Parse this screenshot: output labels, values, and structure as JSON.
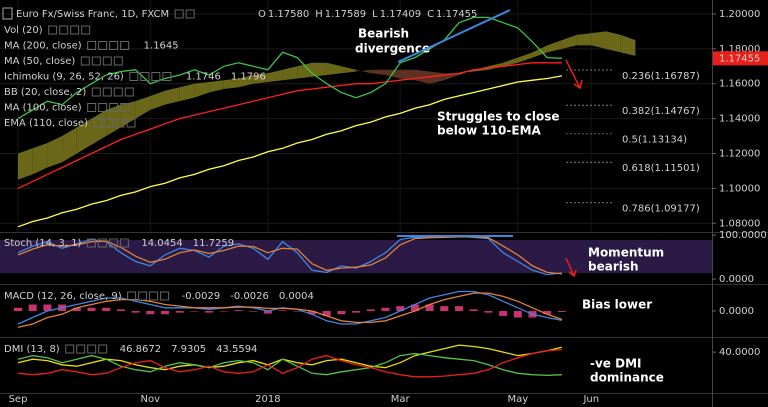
{
  "chart_data": [
    {
      "type": "line",
      "title": "Euro Fx/Swiss Franc, 1D, FXCM",
      "ohlc": [
        {
          "key": "O",
          "value": "1.17580"
        },
        {
          "key": "H",
          "value": "1.17589"
        },
        {
          "key": "L",
          "value": "1.17409"
        },
        {
          "key": "C",
          "value": "1.17455"
        }
      ],
      "indicators": [
        {
          "label": "Vol (20)"
        },
        {
          "label": "MA (200, close)",
          "values": [
            {
              "text": "1.1645",
              "color": "#ffff44"
            }
          ]
        },
        {
          "label": "MA (50, close)"
        },
        {
          "label": "Ichimoku (9, 26, 52, 26)",
          "values": [
            {
              "text": "1.1746",
              "color": "#55c24a"
            },
            {
              "text": "1.1796",
              "color": "#55c24a"
            }
          ]
        },
        {
          "label": "BB (20, close, 2)"
        },
        {
          "label": "MA (100, close)"
        },
        {
          "label": "EMA (110, close)"
        }
      ],
      "annotations": [
        "Bearish",
        "divergence",
        "Struggles to close",
        "below 110-EMA"
      ],
      "categories": [
        "Sep",
        null,
        null,
        null,
        null,
        null,
        null,
        null,
        null,
        "Nov",
        null,
        null,
        null,
        null,
        null,
        null,
        null,
        "2018",
        null,
        null,
        null,
        null,
        null,
        null,
        null,
        null,
        "Mar",
        null,
        null,
        null,
        null,
        null,
        null,
        null,
        "May",
        null,
        null,
        null,
        null,
        "Jun",
        null,
        null,
        null,
        null,
        null,
        null
      ],
      "ylim": [
        1.075,
        1.208
      ],
      "yticks": [
        {
          "value": 1.2,
          "label": "1.20000"
        },
        {
          "value": 1.18,
          "label": "1.18000"
        },
        {
          "value": 1.16,
          "label": "1.16000"
        },
        {
          "value": 1.14,
          "label": "1.14000"
        },
        {
          "value": 1.12,
          "label": "1.12000"
        },
        {
          "value": 1.1,
          "label": "1.10000"
        },
        {
          "value": 1.08,
          "label": "1.08000"
        }
      ],
      "grid": true,
      "series": [
        {
          "type": "cloud",
          "color": "#7d7a1c",
          "color2": "#6b3b2a",
          "span_a": [
            1.12,
            1.123,
            1.126,
            1.13,
            1.135,
            1.14,
            1.145,
            1.148,
            1.15,
            1.153,
            1.156,
            1.158,
            1.16,
            1.161,
            1.162,
            1.163,
            1.165,
            1.166,
            1.168,
            1.17,
            1.172,
            1.172,
            1.17,
            1.168,
            1.166,
            1.165,
            1.163,
            1.162,
            1.16,
            1.162,
            1.165,
            1.168,
            1.17,
            1.172,
            1.175,
            1.178,
            1.182,
            1.185,
            1.188,
            1.189,
            1.19,
            1.188,
            1.185,
            null,
            null,
            null
          ],
          "span_b": [
            1.105,
            1.108,
            1.112,
            1.115,
            1.12,
            1.125,
            1.13,
            1.135,
            1.14,
            1.145,
            1.148,
            1.15,
            1.152,
            1.155,
            1.157,
            1.158,
            1.16,
            1.161,
            1.162,
            1.163,
            1.164,
            1.165,
            1.166,
            1.167,
            1.168,
            1.168,
            1.168,
            1.168,
            1.167,
            1.166,
            1.166,
            1.167,
            1.168,
            1.17,
            1.172,
            1.175,
            1.178,
            1.18,
            1.182,
            1.182,
            1.18,
            1.178,
            1.176,
            null,
            null,
            null
          ]
        },
        {
          "color": "#ffff44",
          "values": [
            1.078,
            1.081,
            1.083,
            1.086,
            1.088,
            1.091,
            1.093,
            1.096,
            1.098,
            1.101,
            1.103,
            1.106,
            1.108,
            1.111,
            1.113,
            1.116,
            1.118,
            1.121,
            1.123,
            1.126,
            1.128,
            1.131,
            1.133,
            1.136,
            1.138,
            1.141,
            1.143,
            1.146,
            1.148,
            1.151,
            1.153,
            1.155,
            1.157,
            1.159,
            1.161,
            1.162,
            1.163,
            1.1645,
            null,
            null,
            null,
            null,
            null,
            null,
            null,
            null
          ]
        },
        {
          "color": "#ff2020",
          "values": [
            1.1,
            1.104,
            1.108,
            1.112,
            1.116,
            1.12,
            1.124,
            1.128,
            1.131,
            1.134,
            1.137,
            1.14,
            1.142,
            1.144,
            1.146,
            1.148,
            1.15,
            1.152,
            1.154,
            1.156,
            1.157,
            1.158,
            1.159,
            1.16,
            1.16,
            1.161,
            1.162,
            1.163,
            1.164,
            1.165,
            1.166,
            1.168,
            1.169,
            1.17,
            1.171,
            1.172,
            1.172,
            1.172,
            null,
            null,
            null,
            null,
            null,
            null,
            null,
            null
          ]
        },
        {
          "color": "#3cc24b",
          "values": [
            1.14,
            1.145,
            1.15,
            1.148,
            1.155,
            1.16,
            1.165,
            1.167,
            1.168,
            1.16,
            1.163,
            1.165,
            1.168,
            1.165,
            1.17,
            1.172,
            1.17,
            1.168,
            1.178,
            1.175,
            1.166,
            1.16,
            1.155,
            1.152,
            1.155,
            1.16,
            1.172,
            1.175,
            1.18,
            1.185,
            1.195,
            1.198,
            1.198,
            1.195,
            1.192,
            1.184,
            1.175,
            1.17455,
            null,
            null,
            null,
            null,
            null,
            null,
            null,
            null
          ]
        }
      ],
      "fib_levels": [
        {
          "value": 1.16787,
          "label": "0.236(1.16787)",
          "color": "#d0d0d0"
        },
        {
          "value": 1.14767,
          "label": "0.382(1.14767)",
          "color": "#d0d0d0"
        },
        {
          "value": 1.13134,
          "label": "0.5(1.13134)",
          "color": "#6fbf4a"
        },
        {
          "value": 1.11501,
          "label": "0.618(1.11501)",
          "color": "#d0d0d0"
        },
        {
          "value": 1.09177,
          "label": "0.786(1.09177)",
          "color": "#d0d0d0"
        }
      ],
      "last_price": {
        "value": 1.17455,
        "label": "1.17455",
        "color": "#e8201c"
      }
    },
    {
      "type": "line",
      "title": "Stoch (14, 3, 1)",
      "header_values": [
        {
          "text": "14.0454",
          "color": "#3f86e0"
        },
        {
          "text": "11.7259",
          "color": "#e0813a"
        }
      ],
      "annotations": [
        "Momentum",
        "bearish"
      ],
      "ylim": [
        -9,
        107
      ],
      "yticks": [
        {
          "value": 100,
          "label": "100.0000"
        },
        {
          "value": 0,
          "label": "0.0000"
        }
      ],
      "series": [
        {
          "color": "#3f86e0",
          "values": [
            60,
            75,
            85,
            70,
            80,
            90,
            85,
            60,
            40,
            30,
            55,
            70,
            65,
            50,
            75,
            80,
            70,
            45,
            85,
            60,
            20,
            15,
            30,
            25,
            40,
            60,
            90,
            95,
            95,
            96,
            97,
            95,
            92,
            60,
            40,
            20,
            10,
            14.05
          ]
        },
        {
          "color": "#e0813a",
          "values": [
            55,
            68,
            78,
            75,
            78,
            85,
            86,
            72,
            52,
            38,
            45,
            60,
            66,
            58,
            65,
            75,
            74,
            60,
            70,
            68,
            35,
            20,
            25,
            27,
            32,
            48,
            78,
            92,
            94,
            95,
            96,
            96,
            94,
            75,
            55,
            30,
            15,
            11.73
          ]
        }
      ]
    },
    {
      "type": "line",
      "title": "MACD (12, 26, close, 9)",
      "header_values": [
        {
          "text": "-0.0029",
          "color": "#e8201c"
        },
        {
          "text": "-0.0026",
          "color": "#3f86e0"
        },
        {
          "text": "0.0004",
          "color": "#e0813a"
        }
      ],
      "annotations": [
        "Bias lower"
      ],
      "ylim": [
        -0.008,
        0.008
      ],
      "yticks": [
        {
          "value": 0,
          "label": "0.0000"
        }
      ],
      "series": [
        {
          "type": "bar",
          "color": "#c8326e",
          "values": [
            0.001,
            0.002,
            0.002,
            0.002,
            0.001,
            0.001,
            0.001,
            0.0005,
            -0.0005,
            -0.001,
            -0.001,
            -0.0005,
            0,
            -0.0005,
            0,
            0.0003,
            -0.0002,
            -0.0008,
            0.0002,
            -0.0001,
            -0.001,
            -0.0015,
            -0.001,
            -0.0005,
            0.0005,
            0.001,
            0.0015,
            0.002,
            0.002,
            0.0015,
            0.0015,
            0.0005,
            -0.0005,
            -0.0015,
            -0.002,
            -0.002,
            -0.001,
            -0.0003
          ]
        },
        {
          "color": "#3f86e0",
          "values": [
            -0.004,
            -0.002,
            0.0,
            0.001,
            0.002,
            0.003,
            0.004,
            0.004,
            0.003,
            0.002,
            0.001,
            0.001,
            0.001,
            0.0005,
            0.001,
            0.0015,
            0.001,
            0.0,
            0.001,
            0.0005,
            -0.001,
            -0.003,
            -0.004,
            -0.004,
            -0.003,
            -0.002,
            0.0,
            0.002,
            0.004,
            0.005,
            0.006,
            0.006,
            0.005,
            0.003,
            0.001,
            -0.001,
            -0.002,
            -0.0029
          ]
        },
        {
          "color": "#e0813a",
          "values": [
            -0.005,
            -0.004,
            -0.002,
            -0.001,
            0.001,
            0.002,
            0.003,
            0.0035,
            0.0035,
            0.003,
            0.002,
            0.0015,
            0.001,
            0.001,
            0.001,
            0.0012,
            0.0012,
            0.0008,
            0.0008,
            0.0006,
            0.0,
            -0.0015,
            -0.003,
            -0.0035,
            -0.0035,
            -0.003,
            -0.0015,
            0.0,
            0.002,
            0.0035,
            0.0045,
            0.0055,
            0.0055,
            0.0045,
            0.003,
            0.001,
            -0.001,
            -0.0026
          ]
        }
      ]
    },
    {
      "type": "line",
      "title": "DMI (13, 8)",
      "header_values": [
        {
          "text": "46.8672",
          "color": "#e8e000"
        },
        {
          "text": "7.9305",
          "color": "#55c24a"
        },
        {
          "text": "43.5594",
          "color": "#e8201c"
        }
      ],
      "annotations": [
        "-ve DMI",
        "dominance"
      ],
      "ylim": [
        -18,
        60
      ],
      "yticks": [
        {
          "value": 40,
          "label": "40.0000"
        }
      ],
      "series": [
        {
          "color": "#e8e000",
          "values": [
            25,
            30,
            28,
            22,
            20,
            25,
            30,
            28,
            22,
            18,
            15,
            20,
            22,
            18,
            20,
            25,
            28,
            22,
            30,
            25,
            22,
            28,
            30,
            25,
            20,
            18,
            25,
            35,
            40,
            45,
            50,
            48,
            45,
            40,
            35,
            38,
            42,
            46.8672
          ]
        },
        {
          "color": "#55c24a",
          "values": [
            30,
            35,
            32,
            25,
            30,
            35,
            30,
            20,
            15,
            12,
            20,
            25,
            22,
            18,
            25,
            28,
            25,
            15,
            30,
            20,
            10,
            8,
            12,
            15,
            18,
            25,
            35,
            38,
            35,
            32,
            30,
            28,
            22,
            15,
            10,
            8,
            7,
            7.9305
          ]
        },
        {
          "color": "#e8201c",
          "values": [
            10,
            8,
            10,
            15,
            12,
            8,
            10,
            18,
            25,
            28,
            18,
            12,
            15,
            20,
            12,
            10,
            12,
            22,
            10,
            18,
            30,
            35,
            28,
            22,
            18,
            12,
            8,
            5,
            5,
            6,
            8,
            10,
            15,
            25,
            32,
            38,
            42,
            43.5594
          ]
        }
      ]
    }
  ]
}
